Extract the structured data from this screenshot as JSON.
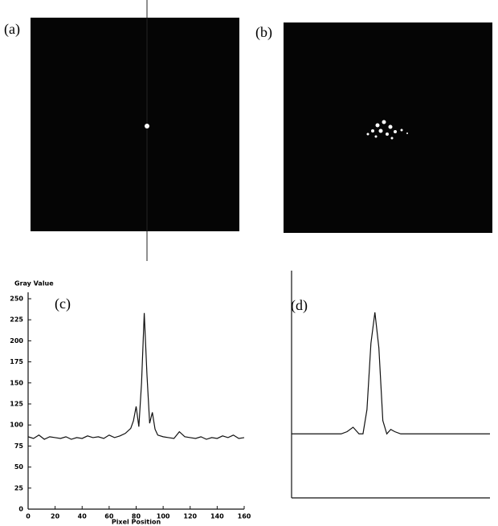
{
  "panels": {
    "labels": [
      "(a)",
      "(b)",
      "(c)",
      "(d)"
    ]
  },
  "chart_data": [
    {
      "type": "line",
      "y_label": "Gray Value",
      "x_label": "Pixel Position",
      "x": [
        0,
        4,
        8,
        12,
        16,
        20,
        24,
        28,
        32,
        36,
        40,
        44,
        48,
        52,
        56,
        60,
        64,
        68,
        72,
        76,
        78,
        80,
        82,
        84,
        86,
        88,
        90,
        92,
        94,
        96,
        100,
        104,
        108,
        112,
        116,
        120,
        124,
        128,
        132,
        136,
        140,
        144,
        148,
        152,
        156,
        160
      ],
      "series": [
        {
          "color": "#111111",
          "values": [
            86,
            84,
            88,
            83,
            86,
            85,
            84,
            86,
            83,
            85,
            84,
            87,
            85,
            86,
            84,
            88,
            85,
            87,
            90,
            96,
            105,
            122,
            98,
            150,
            233,
            160,
            102,
            115,
            95,
            88,
            86,
            85,
            84,
            92,
            86,
            85,
            84,
            86,
            83,
            85,
            84,
            87,
            85,
            88,
            84,
            85
          ]
        }
      ],
      "xlim": [
        0,
        160
      ],
      "ylim": [
        0,
        250
      ],
      "xticks": [
        0,
        20,
        40,
        60,
        80,
        100,
        120,
        140,
        160
      ],
      "yticks": [
        0,
        25,
        50,
        75,
        100,
        125,
        150,
        175,
        200,
        225,
        250
      ]
    },
    {
      "type": "line",
      "x": [
        0,
        10,
        20,
        25,
        28,
        31,
        34,
        36,
        38,
        40,
        42,
        44,
        46,
        48,
        50,
        52,
        55,
        60,
        70,
        80,
        90,
        100
      ],
      "series": [
        {
          "color": "#111111",
          "values": [
            29,
            29,
            29,
            29,
            30,
            32,
            29,
            29,
            40,
            70,
            84,
            68,
            35,
            29,
            31,
            30,
            29,
            29,
            29,
            29,
            29,
            29
          ]
        }
      ],
      "xlim": [
        0,
        100
      ],
      "ylim": [
        0,
        100
      ]
    }
  ]
}
